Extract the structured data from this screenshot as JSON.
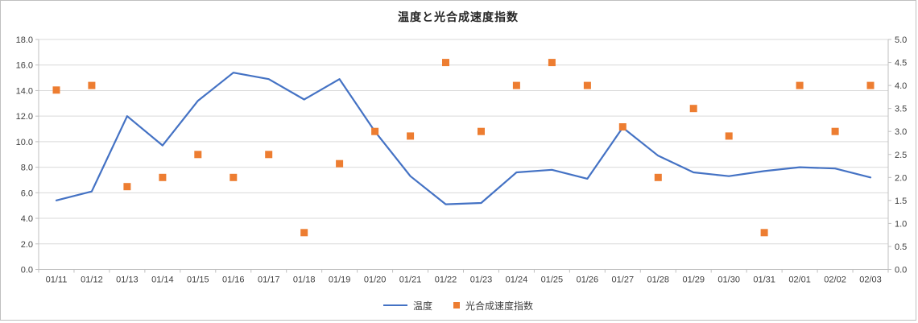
{
  "title": "温度と光合成速度指数",
  "colors": {
    "temperature_line": "#4472C4",
    "photosynthesis_marker": "#ED7D31",
    "gridline": "#D9D9D9",
    "axis_line": "#BFBFBF",
    "axis_text": "#404040",
    "title_text": "#262626",
    "background": "#FFFFFF"
  },
  "chart_data": {
    "type": "line",
    "subtype": "combo-line-and-scatter-dual-axis",
    "title": "温度と光合成速度指数",
    "categories": [
      "01/11",
      "01/12",
      "01/13",
      "01/14",
      "01/15",
      "01/16",
      "01/17",
      "01/18",
      "01/19",
      "01/20",
      "01/21",
      "01/22",
      "01/23",
      "01/24",
      "01/25",
      "01/26",
      "01/27",
      "01/28",
      "01/29",
      "01/30",
      "01/31",
      "02/01",
      "02/02",
      "02/03"
    ],
    "series": [
      {
        "name": "温度",
        "type": "line",
        "axis": "left",
        "color": "#4472C4",
        "values": [
          5.4,
          6.1,
          12.0,
          9.7,
          13.2,
          15.4,
          14.9,
          13.3,
          14.9,
          10.8,
          7.3,
          5.1,
          5.2,
          7.6,
          7.8,
          7.1,
          11.1,
          8.9,
          7.6,
          7.3,
          7.7,
          8.0,
          7.9,
          7.2
        ]
      },
      {
        "name": "光合成速度指数",
        "type": "scatter",
        "axis": "right",
        "color": "#ED7D31",
        "values": [
          3.9,
          4.0,
          1.8,
          2.0,
          2.5,
          2.0,
          2.5,
          0.8,
          2.3,
          3.0,
          2.9,
          4.5,
          3.0,
          4.0,
          4.5,
          4.0,
          3.1,
          2.0,
          3.5,
          2.9,
          0.8,
          4.0,
          3.0,
          4.0
        ]
      }
    ],
    "left_axis": {
      "min": 0,
      "max": 18,
      "step": 2,
      "tick_format": "one-decimal"
    },
    "right_axis": {
      "min": 0,
      "max": 5,
      "step": 0.5,
      "tick_format": "one-decimal"
    },
    "grid": true,
    "legend_position": "bottom"
  }
}
